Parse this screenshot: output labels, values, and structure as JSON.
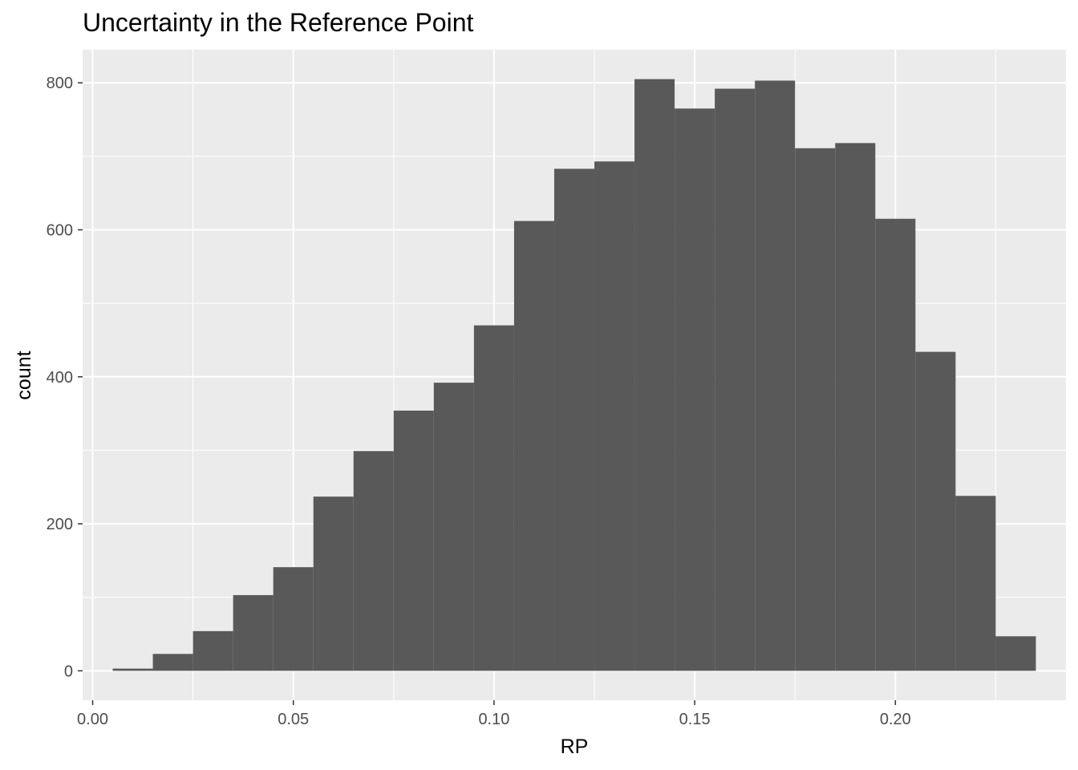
{
  "chart_data": {
    "type": "bar",
    "title": "Uncertainty in the Reference Point",
    "xlabel": "RP",
    "ylabel": "count",
    "xlim": [
      -0.0025,
      0.2425
    ],
    "ylim": [
      -40,
      845
    ],
    "x_ticks": [
      0.0,
      0.05,
      0.1,
      0.15,
      0.2
    ],
    "x_tick_labels": [
      "0.00",
      "0.05",
      "0.10",
      "0.15",
      "0.20"
    ],
    "x_minor_ticks": [
      0.025,
      0.075,
      0.125,
      0.175,
      0.225
    ],
    "y_ticks": [
      0,
      200,
      400,
      600,
      800
    ],
    "y_tick_labels": [
      "0",
      "200",
      "400",
      "600",
      "800"
    ],
    "y_minor_ticks": [
      100,
      300,
      500,
      700
    ],
    "grid": true,
    "bin_width": 0.01,
    "bin_centers": [
      0.01,
      0.02,
      0.03,
      0.04,
      0.05,
      0.06,
      0.07,
      0.08,
      0.09,
      0.1,
      0.11,
      0.12,
      0.13,
      0.14,
      0.15,
      0.16,
      0.17,
      0.18,
      0.19,
      0.2,
      0.21,
      0.22,
      0.23
    ],
    "values": [
      3,
      23,
      54,
      103,
      141,
      237,
      299,
      354,
      392,
      470,
      612,
      683,
      693,
      805,
      765,
      792,
      803,
      711,
      718,
      615,
      434,
      238,
      47
    ],
    "colors": {
      "panel": "#ebebeb",
      "grid": "#ffffff",
      "bar": "#595959",
      "tick": "#333333"
    }
  }
}
